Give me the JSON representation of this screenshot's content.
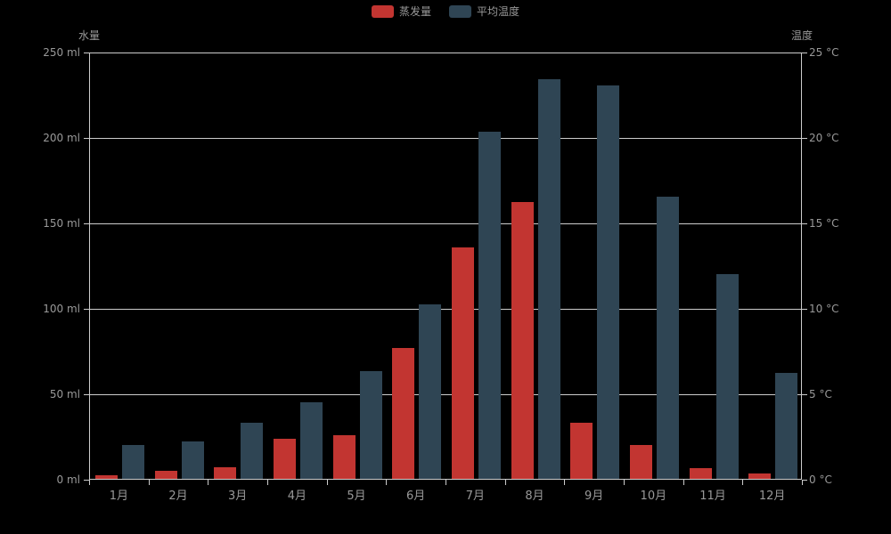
{
  "chart_data": {
    "type": "bar",
    "title": "",
    "categories": [
      "1月",
      "2月",
      "3月",
      "4月",
      "5月",
      "6月",
      "7月",
      "8月",
      "9月",
      "10月",
      "11月",
      "12月"
    ],
    "series": [
      {
        "name": "蒸发量",
        "axis": "left",
        "color": "#c23531",
        "values": [
          2.0,
          4.9,
          7.0,
          23.2,
          25.6,
          76.7,
          135.6,
          162.2,
          32.6,
          20.0,
          6.4,
          3.3
        ]
      },
      {
        "name": "平均温度",
        "axis": "right",
        "color": "#2f4554",
        "values": [
          2.0,
          2.2,
          3.3,
          4.5,
          6.3,
          10.2,
          20.3,
          23.4,
          23.0,
          16.5,
          12.0,
          6.2
        ]
      }
    ],
    "left_axis": {
      "name": "水量",
      "unit": "ml",
      "min": 0,
      "max": 250,
      "step": 50,
      "tick_labels": [
        "250 ml",
        "200 ml",
        "150 ml",
        "100 ml",
        "50 ml",
        "0 ml"
      ]
    },
    "right_axis": {
      "name": "温度",
      "unit": "°C",
      "min": 0,
      "max": 25,
      "step": 5,
      "tick_labels": [
        "25 °C",
        "20 °C",
        "15 °C",
        "10 °C",
        "5 °C",
        "0 °C"
      ]
    },
    "legend_position": "top-center",
    "grid": true,
    "background_color": "#000000",
    "grid_color": "#cccccc",
    "text_color": "#999999"
  }
}
